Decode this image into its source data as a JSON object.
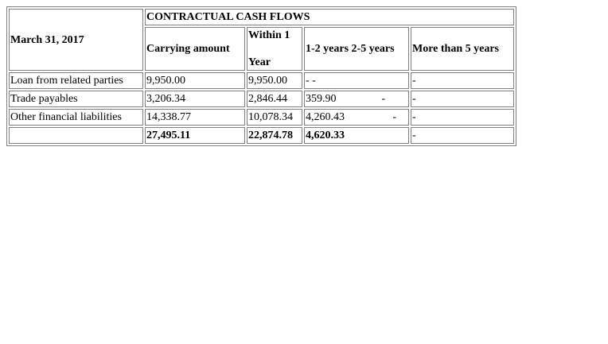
{
  "table": {
    "title": "CONTRACTUAL CASH FLOWS",
    "date_label": "March 31, 2017",
    "headers": {
      "carrying_amount": "Carrying amount",
      "within_1_line1": "Within 1",
      "within_1_line2": "Year",
      "one_to_five": "1-2 years 2-5 years",
      "more_than_5": "More than 5 years"
    },
    "rows": [
      {
        "label": "Loan from related parties",
        "carrying": "9,950.00",
        "within": "9,950.00",
        "one_two": "- -",
        "two_five": "",
        "more": "-"
      },
      {
        "label": "Trade payables",
        "carrying": "3,206.34",
        "within": "2,846.44",
        "one_two": "359.90",
        "two_five": "-",
        "more": "-"
      },
      {
        "label": "Other financial liabilities",
        "carrying": "14,338.77",
        "within": "10,078.34",
        "one_two": "4,260.43",
        "two_five": "-",
        "more": "-"
      },
      {
        "label": "",
        "carrying": "27,495.11",
        "within": "22,874.78",
        "one_two": "4,620.33",
        "two_five": "",
        "more": "-"
      }
    ]
  }
}
